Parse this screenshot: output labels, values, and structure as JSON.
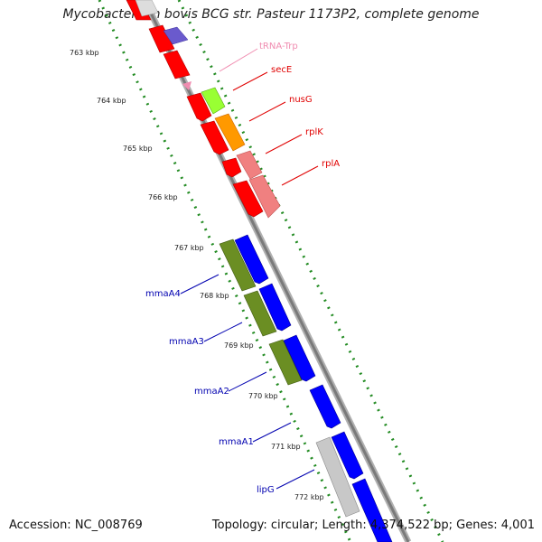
{
  "title": "Mycobacterium bovis BCG str. Pasteur 1173P2, complete genome",
  "accession_text": "Accession: NC_008769",
  "topology_text": "Topology: circular; Length: 4,374,522 bp; Genes: 4,001",
  "ticks": [
    "763 kbp",
    "764 kbp",
    "765 kbp",
    "766 kbp",
    "767 kbp",
    "768 kbp",
    "769 kbp",
    "770 kbp",
    "771 kbp",
    "772 kbp"
  ],
  "features": [
    {
      "id": "trna-trp",
      "name": "tRNA-Trp",
      "color": "#f08cb0"
    },
    {
      "id": "sece",
      "name": "secE",
      "color": "#e00000"
    },
    {
      "id": "nusg",
      "name": "nusG",
      "color": "#e00000"
    },
    {
      "id": "rplk",
      "name": "rplK",
      "color": "#e00000"
    },
    {
      "id": "rpla",
      "name": "rplA",
      "color": "#e00000"
    },
    {
      "id": "mmaa4",
      "name": "mmaA4",
      "color": "#0000b0"
    },
    {
      "id": "mmaa3",
      "name": "mmaA3",
      "color": "#0000b0"
    },
    {
      "id": "mmaa2",
      "name": "mmaA2",
      "color": "#0000b0"
    },
    {
      "id": "mmaa1",
      "name": "mmaA1",
      "color": "#0000b0"
    },
    {
      "id": "lipg",
      "name": "lipG",
      "color": "#0000b0"
    }
  ],
  "colors": {
    "cds_red": "#ff0000",
    "cds_blue": "#0000ff",
    "lime": "#99ff33",
    "orange": "#ff9900",
    "pink": "#f08080",
    "olive": "#6b8e23",
    "gray": "#c8c8c8",
    "purple": "#6a5acd",
    "backbone": "#888888",
    "dots": "#228b22"
  }
}
